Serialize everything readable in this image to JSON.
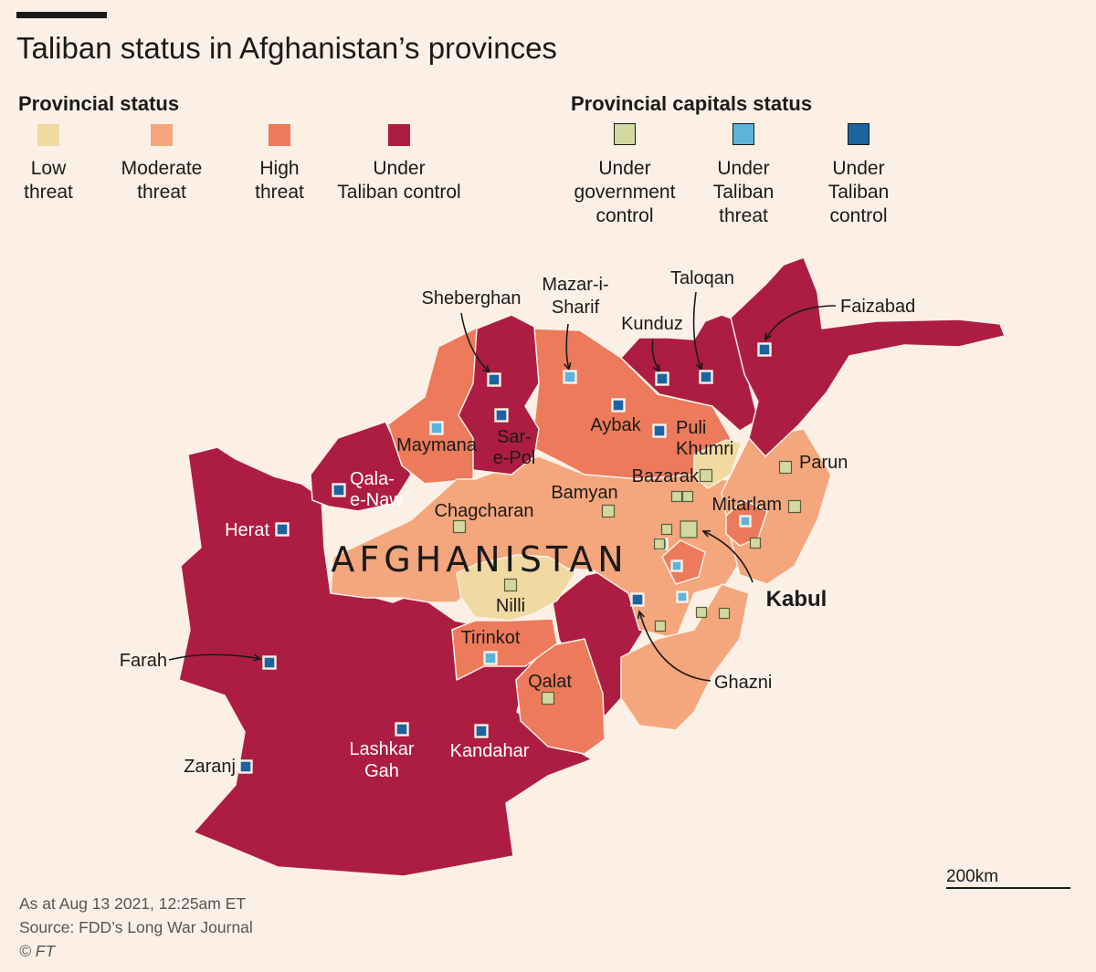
{
  "title": "Taliban status in Afghanistan’s provinces",
  "legend": {
    "provincial_heading": "Provincial status",
    "capitals_heading": "Provincial capitals status",
    "provincial": [
      {
        "id": "low",
        "label": [
          "Low",
          "threat"
        ],
        "color": "#f1d9a2"
      },
      {
        "id": "moderate",
        "label": [
          "Moderate",
          "threat"
        ],
        "color": "#f4a67c"
      },
      {
        "id": "high",
        "label": [
          "High",
          "threat"
        ],
        "color": "#ec7a5b"
      },
      {
        "id": "taliban",
        "label": [
          "Under",
          "Taliban control"
        ],
        "color": "#ad1d42"
      }
    ],
    "capitals": [
      {
        "id": "gov",
        "label": [
          "Under",
          "government",
          "control"
        ],
        "color": "#d3d7a0"
      },
      {
        "id": "threat",
        "label": [
          "Under",
          "Taliban",
          "threat"
        ],
        "color": "#5ab4dc"
      },
      {
        "id": "control",
        "label": [
          "Under",
          "Taliban",
          "control"
        ],
        "color": "#1b64a0"
      }
    ]
  },
  "country_label": "AFGHANISTAN",
  "capitals": [
    {
      "name": "Sheberghan",
      "status": "control"
    },
    {
      "name": "Mazar-i-Sharif",
      "status": "threat"
    },
    {
      "name": "Taloqan",
      "status": "control"
    },
    {
      "name": "Kunduz",
      "status": "control"
    },
    {
      "name": "Faizabad",
      "status": "control"
    },
    {
      "name": "Aybak",
      "status": "control"
    },
    {
      "name": "Puli Khumri",
      "status": "control"
    },
    {
      "name": "Maymana",
      "status": "threat"
    },
    {
      "name": "Sar-e-Pol",
      "status": "control"
    },
    {
      "name": "Qala-e-Naw",
      "status": "control"
    },
    {
      "name": "Bazarak",
      "status": "gov"
    },
    {
      "name": "Parun",
      "status": "gov"
    },
    {
      "name": "Bamyan",
      "status": "gov"
    },
    {
      "name": "Mitarlam",
      "status": "gov"
    },
    {
      "name": "Chagcharan",
      "status": "gov"
    },
    {
      "name": "Herat",
      "status": "control"
    },
    {
      "name": "Kabul",
      "status": "gov"
    },
    {
      "name": "Nilli",
      "status": "gov"
    },
    {
      "name": "Ghazni",
      "status": "control"
    },
    {
      "name": "Tirinkot",
      "status": "threat"
    },
    {
      "name": "Farah",
      "status": "control"
    },
    {
      "name": "Qalat",
      "status": "gov"
    },
    {
      "name": "Lashkar Gah",
      "status": "control"
    },
    {
      "name": "Kandahar",
      "status": "control"
    },
    {
      "name": "Zaranj",
      "status": "control"
    }
  ],
  "unlabeled_capitals": [
    "control",
    "gov",
    "gov",
    "gov",
    "threat",
    "threat",
    "gov",
    "threat",
    "threat",
    "gov",
    "gov",
    "gov",
    "gov"
  ],
  "footer": {
    "as_at": "As at Aug 13 2021, 12:25am ET",
    "source": "Source: FDD’s Long War Journal",
    "credit": "© FT"
  },
  "scale": "200km"
}
